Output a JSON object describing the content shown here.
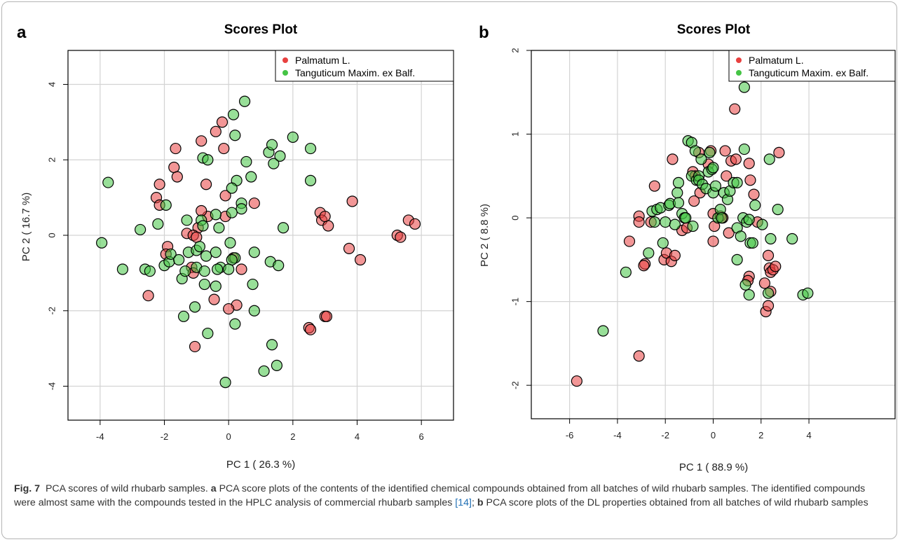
{
  "figure": {
    "caption": {
      "label": "Fig. 7",
      "title": "PCA scores of wild rhubarb samples.",
      "part_a_letter": "a",
      "part_a_text": "PCA score plots of the contents of the identified chemical compounds obtained from all batches of wild rhubarb samples. The identified compounds were almost same with the compounds tested in the HPLC analysis of commercial rhubarb samples",
      "ref": "[14]",
      "sep": ";",
      "part_b_letter": "b",
      "part_b_text": "PCA score plots of the DL properties obtained from all batches of wild rhubarb samples"
    }
  },
  "chart_data": [
    {
      "panel": "a",
      "type": "scatter",
      "title": "Scores Plot",
      "xlabel": "PC 1 ( 26.3 %)",
      "ylabel": "PC 2 ( 16.7 %)",
      "xlim": [
        -5,
        7
      ],
      "ylim": [
        -4.9,
        4.9
      ],
      "xticks": [
        -4,
        -2,
        0,
        2,
        4,
        6
      ],
      "yticks": [
        -4,
        -2,
        0,
        2,
        4
      ],
      "grid": true,
      "legend_position": "top-right",
      "series": [
        {
          "name": "Palmatum L.",
          "color": "#e8403f",
          "points": [
            [
              -0.2,
              3.0
            ],
            [
              -0.4,
              2.75
            ],
            [
              -0.15,
              2.3
            ],
            [
              -1.65,
              2.3
            ],
            [
              -0.85,
              2.5
            ],
            [
              -1.7,
              1.8
            ],
            [
              -1.6,
              1.55
            ],
            [
              -2.15,
              1.35
            ],
            [
              -2.25,
              1.0
            ],
            [
              -2.15,
              0.8
            ],
            [
              -0.7,
              1.35
            ],
            [
              -0.1,
              1.05
            ],
            [
              0.8,
              0.85
            ],
            [
              -0.65,
              0.5
            ],
            [
              -0.85,
              0.65
            ],
            [
              -0.1,
              0.5
            ],
            [
              -0.95,
              0.2
            ],
            [
              -1.3,
              0.05
            ],
            [
              -1.1,
              0.0
            ],
            [
              -1.0,
              -0.05
            ],
            [
              -1.15,
              -0.85
            ],
            [
              -1.1,
              -1.0
            ],
            [
              -1.9,
              -0.3
            ],
            [
              -1.95,
              -0.5
            ],
            [
              2.85,
              0.6
            ],
            [
              2.9,
              0.4
            ],
            [
              3.1,
              0.25
            ],
            [
              3.0,
              0.5
            ],
            [
              3.85,
              0.9
            ],
            [
              3.75,
              -0.35
            ],
            [
              4.1,
              -0.65
            ],
            [
              5.25,
              0.0
            ],
            [
              5.35,
              -0.05
            ],
            [
              5.6,
              0.4
            ],
            [
              5.8,
              0.3
            ],
            [
              0.15,
              -0.6
            ],
            [
              0.4,
              -0.9
            ],
            [
              -0.45,
              -1.7
            ],
            [
              0.25,
              -1.85
            ],
            [
              0.0,
              -1.95
            ],
            [
              -1.05,
              -2.95
            ],
            [
              -2.5,
              -1.6
            ],
            [
              2.5,
              -2.45
            ],
            [
              2.55,
              -2.5
            ],
            [
              3.0,
              -2.15
            ],
            [
              3.05,
              -2.15
            ]
          ]
        },
        {
          "name": "Tanguticum Maxim. ex Balf.",
          "color": "#44c444",
          "points": [
            [
              -3.75,
              1.4
            ],
            [
              -3.95,
              -0.2
            ],
            [
              -3.3,
              -0.9
            ],
            [
              -2.75,
              0.15
            ],
            [
              -2.6,
              -0.9
            ],
            [
              -2.45,
              -0.95
            ],
            [
              -2.2,
              0.3
            ],
            [
              -1.95,
              0.8
            ],
            [
              -2.0,
              -0.8
            ],
            [
              -1.85,
              -0.7
            ],
            [
              -1.8,
              -0.5
            ],
            [
              -1.55,
              -0.65
            ],
            [
              -1.45,
              -1.15
            ],
            [
              -1.35,
              -0.95
            ],
            [
              -1.3,
              0.4
            ],
            [
              -1.25,
              -0.45
            ],
            [
              -1.4,
              -2.15
            ],
            [
              -1.0,
              -0.4
            ],
            [
              -1.05,
              -1.9
            ],
            [
              -1.0,
              -0.85
            ],
            [
              -0.85,
              0.4
            ],
            [
              -0.8,
              0.25
            ],
            [
              -0.9,
              -0.3
            ],
            [
              -0.7,
              -0.55
            ],
            [
              -0.75,
              -0.95
            ],
            [
              -0.75,
              -1.3
            ],
            [
              -0.65,
              -2.6
            ],
            [
              -0.8,
              2.05
            ],
            [
              -0.65,
              2.0
            ],
            [
              -0.4,
              0.55
            ],
            [
              -0.3,
              0.2
            ],
            [
              -0.4,
              -0.45
            ],
            [
              -0.25,
              -0.85
            ],
            [
              -0.35,
              -0.9
            ],
            [
              -0.4,
              -1.35
            ],
            [
              -0.1,
              -3.9
            ],
            [
              0.15,
              3.2
            ],
            [
              0.5,
              3.55
            ],
            [
              0.2,
              2.65
            ],
            [
              0.55,
              1.95
            ],
            [
              0.25,
              1.45
            ],
            [
              0.1,
              1.25
            ],
            [
              0.4,
              0.85
            ],
            [
              0.4,
              0.7
            ],
            [
              0.1,
              0.6
            ],
            [
              0.05,
              -0.2
            ],
            [
              0.2,
              -0.6
            ],
            [
              0.1,
              -0.65
            ],
            [
              0.0,
              -0.9
            ],
            [
              0.2,
              -2.35
            ],
            [
              0.7,
              1.55
            ],
            [
              0.8,
              -0.45
            ],
            [
              0.75,
              -1.3
            ],
            [
              0.8,
              -2.0
            ],
            [
              1.1,
              -3.6
            ],
            [
              1.25,
              2.2
            ],
            [
              1.35,
              2.4
            ],
            [
              1.4,
              1.9
            ],
            [
              1.6,
              2.1
            ],
            [
              1.3,
              -0.7
            ],
            [
              1.55,
              -0.8
            ],
            [
              1.7,
              0.2
            ],
            [
              1.35,
              -2.9
            ],
            [
              1.5,
              -3.45
            ],
            [
              2.0,
              2.6
            ],
            [
              2.55,
              2.3
            ],
            [
              2.55,
              1.45
            ]
          ]
        }
      ]
    },
    {
      "panel": "b",
      "type": "scatter",
      "title": "Scores Plot",
      "xlabel": "PC 1 ( 88.9 %)",
      "ylabel": "PC 2 ( 8.8 %)",
      "xlim": [
        -7.6,
        7.6
      ],
      "ylim": [
        -2.4,
        2.0
      ],
      "xticks": [
        -6,
        -4,
        -2,
        0,
        2,
        4
      ],
      "yticks": [
        -2,
        -1,
        0,
        1,
        2
      ],
      "grid": true,
      "legend_position": "top-right",
      "series": [
        {
          "name": "Palmatum L.",
          "color": "#e8403f",
          "points": [
            [
              -5.7,
              -1.95
            ],
            [
              -3.1,
              -1.65
            ],
            [
              -2.85,
              -0.55
            ],
            [
              -2.9,
              -0.57
            ],
            [
              -3.1,
              0.02
            ],
            [
              -3.1,
              -0.05
            ],
            [
              -3.5,
              -0.28
            ],
            [
              -2.45,
              0.38
            ],
            [
              -2.6,
              -0.05
            ],
            [
              -2.05,
              -0.5
            ],
            [
              -1.95,
              -0.42
            ],
            [
              -1.75,
              -0.52
            ],
            [
              -1.6,
              -0.45
            ],
            [
              -1.7,
              0.7
            ],
            [
              -1.3,
              -0.15
            ],
            [
              -1.1,
              -0.12
            ],
            [
              -0.85,
              0.55
            ],
            [
              -0.75,
              0.5
            ],
            [
              -0.55,
              0.3
            ],
            [
              -0.6,
              0.78
            ],
            [
              -0.8,
              0.2
            ],
            [
              -0.2,
              0.64
            ],
            [
              -0.1,
              0.8
            ],
            [
              0.0,
              0.05
            ],
            [
              0.0,
              -0.28
            ],
            [
              0.05,
              -0.1
            ],
            [
              0.3,
              0.02
            ],
            [
              0.4,
              0.0
            ],
            [
              0.5,
              0.8
            ],
            [
              0.55,
              0.5
            ],
            [
              0.65,
              -0.18
            ],
            [
              0.75,
              0.68
            ],
            [
              0.9,
              1.3
            ],
            [
              0.95,
              0.7
            ],
            [
              1.5,
              0.65
            ],
            [
              1.55,
              0.45
            ],
            [
              1.7,
              0.28
            ],
            [
              1.85,
              -0.05
            ],
            [
              1.5,
              -0.7
            ],
            [
              1.45,
              -0.75
            ],
            [
              2.15,
              -0.78
            ],
            [
              2.2,
              -1.12
            ],
            [
              2.3,
              -1.05
            ],
            [
              2.3,
              -0.45
            ],
            [
              2.35,
              -0.6
            ],
            [
              2.4,
              -0.65
            ],
            [
              2.5,
              -0.62
            ],
            [
              2.6,
              -0.58
            ],
            [
              2.4,
              -0.88
            ],
            [
              2.75,
              0.78
            ]
          ]
        },
        {
          "name": "Tanguticum Maxim. ex Balf.",
          "color": "#44c444",
          "points": [
            [
              -4.6,
              -1.35
            ],
            [
              -3.65,
              -0.65
            ],
            [
              -2.7,
              -0.42
            ],
            [
              -2.55,
              0.08
            ],
            [
              -2.45,
              -0.05
            ],
            [
              -2.35,
              0.1
            ],
            [
              -2.2,
              0.12
            ],
            [
              -2.1,
              -0.3
            ],
            [
              -2.0,
              -0.05
            ],
            [
              -1.85,
              0.15
            ],
            [
              -1.8,
              0.17
            ],
            [
              -1.6,
              -0.08
            ],
            [
              -1.5,
              0.3
            ],
            [
              -1.45,
              0.18
            ],
            [
              -1.45,
              0.42
            ],
            [
              -1.3,
              0.05
            ],
            [
              -1.2,
              0.0
            ],
            [
              -1.15,
              0.0
            ],
            [
              -1.05,
              0.92
            ],
            [
              -0.9,
              0.9
            ],
            [
              -0.9,
              0.5
            ],
            [
              -0.85,
              -0.1
            ],
            [
              -0.75,
              0.8
            ],
            [
              -0.7,
              0.45
            ],
            [
              -0.6,
              0.5
            ],
            [
              -0.6,
              0.45
            ],
            [
              -0.5,
              0.7
            ],
            [
              -0.45,
              0.4
            ],
            [
              -0.3,
              0.35
            ],
            [
              -0.2,
              0.55
            ],
            [
              -0.15,
              0.78
            ],
            [
              -0.05,
              0.58
            ],
            [
              0.0,
              0.6
            ],
            [
              0.0,
              0.3
            ],
            [
              0.1,
              0.38
            ],
            [
              0.2,
              0.0
            ],
            [
              0.3,
              0.1
            ],
            [
              0.35,
              0.0
            ],
            [
              0.45,
              0.3
            ],
            [
              0.6,
              0.22
            ],
            [
              0.7,
              0.32
            ],
            [
              0.85,
              0.42
            ],
            [
              1.0,
              0.42
            ],
            [
              1.0,
              -0.5
            ],
            [
              1.0,
              -0.12
            ],
            [
              1.15,
              -0.22
            ],
            [
              1.25,
              0.0
            ],
            [
              1.3,
              0.82
            ],
            [
              1.3,
              1.56
            ],
            [
              1.35,
              -0.8
            ],
            [
              1.4,
              -0.05
            ],
            [
              1.5,
              -0.02
            ],
            [
              1.5,
              -0.92
            ],
            [
              1.55,
              -0.3
            ],
            [
              1.65,
              -0.3
            ],
            [
              1.75,
              0.15
            ],
            [
              2.05,
              -0.08
            ],
            [
              2.3,
              -0.9
            ],
            [
              2.35,
              0.7
            ],
            [
              2.4,
              -0.25
            ],
            [
              2.7,
              0.1
            ],
            [
              3.3,
              -0.25
            ],
            [
              3.75,
              -0.92
            ],
            [
              3.95,
              -0.9
            ]
          ]
        }
      ]
    }
  ]
}
